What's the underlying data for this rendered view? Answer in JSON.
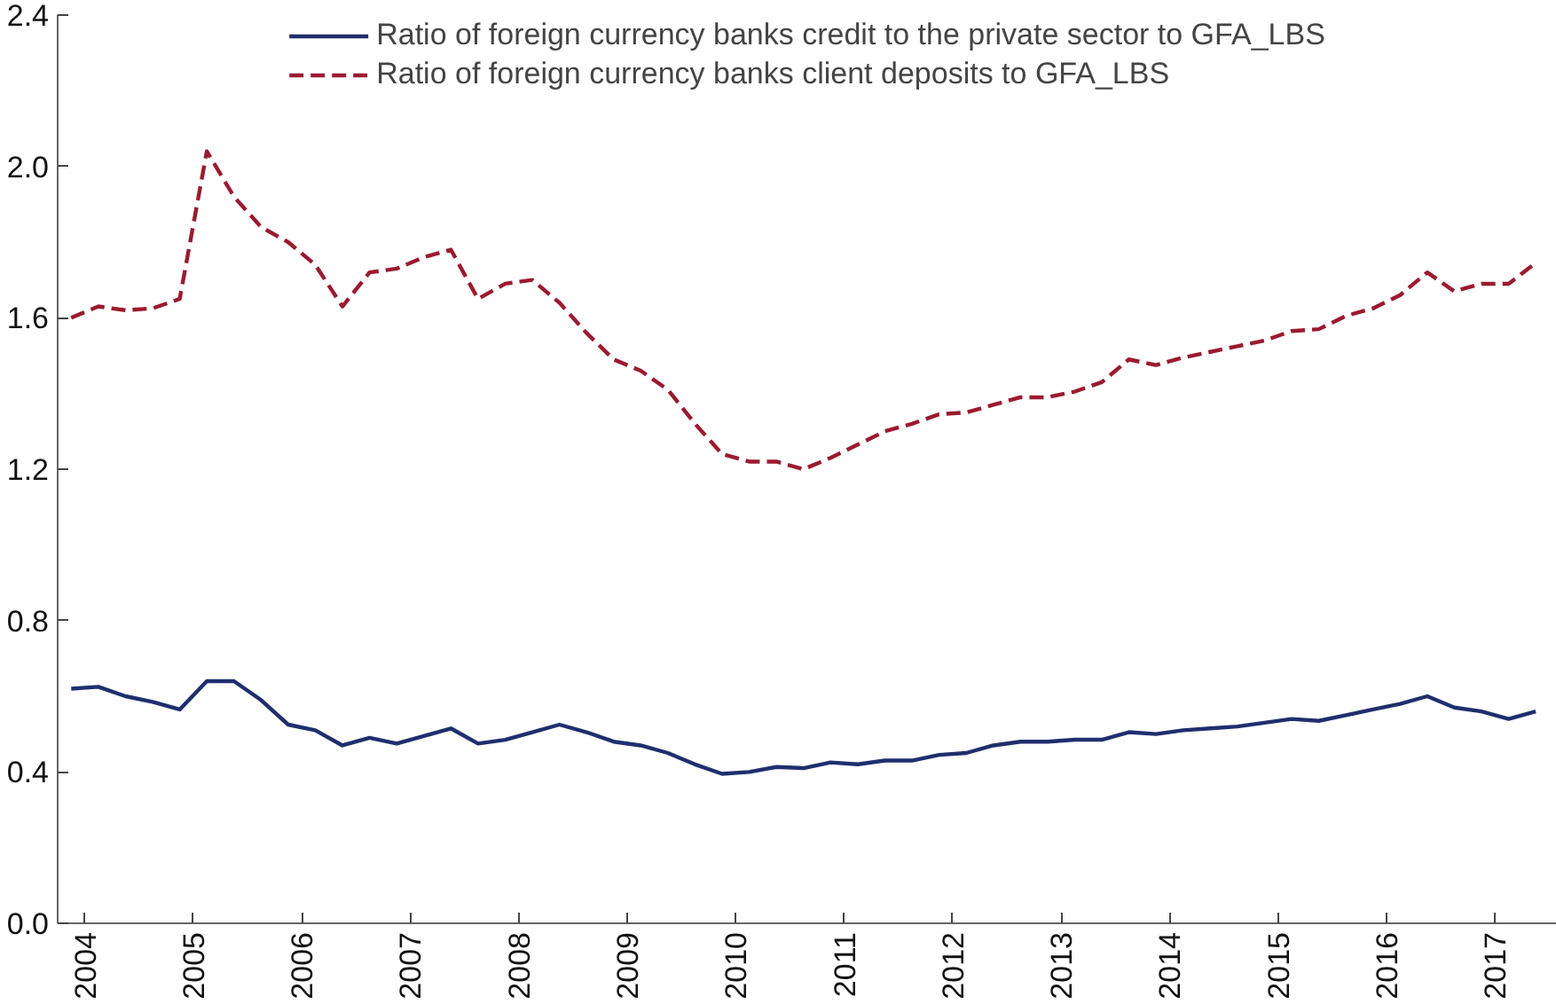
{
  "chart_data": {
    "type": "line",
    "x": [
      2003.875,
      2004.125,
      2004.375,
      2004.625,
      2004.875,
      2005.125,
      2005.375,
      2005.625,
      2005.875,
      2006.125,
      2006.375,
      2006.625,
      2006.875,
      2007.125,
      2007.375,
      2007.625,
      2007.875,
      2008.125,
      2008.375,
      2008.625,
      2008.875,
      2009.125,
      2009.375,
      2009.625,
      2009.875,
      2010.125,
      2010.375,
      2010.625,
      2010.875,
      2011.125,
      2011.375,
      2011.625,
      2011.875,
      2012.125,
      2012.375,
      2012.625,
      2012.875,
      2013.125,
      2013.375,
      2013.625,
      2013.875,
      2014.125,
      2014.375,
      2014.625,
      2014.875,
      2015.125,
      2015.375,
      2015.625,
      2015.875,
      2016.125,
      2016.375,
      2016.625,
      2016.875,
      2017.125,
      2017.375
    ],
    "series": [
      {
        "name": "Ratio of foreign currency banks credit to the private sector to GFA_LBS",
        "color": "#1f2f6e",
        "line_style": "solid",
        "values": [
          0.62,
          0.625,
          0.6,
          0.585,
          0.565,
          0.64,
          0.64,
          0.59,
          0.525,
          0.51,
          0.47,
          0.49,
          0.475,
          0.495,
          0.515,
          0.475,
          0.485,
          0.505,
          0.525,
          0.505,
          0.48,
          0.47,
          0.45,
          0.42,
          0.395,
          0.4,
          0.413,
          0.41,
          0.425,
          0.42,
          0.43,
          0.43,
          0.445,
          0.45,
          0.47,
          0.48,
          0.48,
          0.485,
          0.485,
          0.505,
          0.5,
          0.51,
          0.515,
          0.52,
          0.53,
          0.54,
          0.535,
          0.55,
          0.565,
          0.58,
          0.6,
          0.57,
          0.56,
          0.54,
          0.56
        ]
      },
      {
        "name": "Ratio of foreign currency banks client deposits to GFA_LBS",
        "color": "#9b1b30",
        "line_style": "dashed",
        "values": [
          1.6,
          1.63,
          1.62,
          1.625,
          1.65,
          2.04,
          1.92,
          1.84,
          1.8,
          1.74,
          1.63,
          1.72,
          1.73,
          1.76,
          1.78,
          1.65,
          1.69,
          1.7,
          1.64,
          1.56,
          1.49,
          1.46,
          1.41,
          1.32,
          1.24,
          1.22,
          1.22,
          1.2,
          1.23,
          1.265,
          1.3,
          1.32,
          1.345,
          1.35,
          1.37,
          1.39,
          1.39,
          1.405,
          1.43,
          1.49,
          1.475,
          1.495,
          1.51,
          1.525,
          1.54,
          1.565,
          1.57,
          1.605,
          1.625,
          1.66,
          1.72,
          1.67,
          1.69,
          1.69,
          1.745
        ]
      }
    ],
    "xlim": [
      2003.75,
      2017.57
    ],
    "xticks": [
      2004,
      2005,
      2006,
      2007,
      2008,
      2009,
      2010,
      2011,
      2012,
      2013,
      2014,
      2015,
      2016,
      2017
    ],
    "ylim": [
      0,
      2.4
    ],
    "yticks": [
      {
        "value": 0,
        "label": "0.0"
      },
      0.4,
      0.8,
      1.2,
      1.6,
      {
        "value": 2,
        "label": "2.0"
      },
      2.4
    ],
    "grid": false,
    "legend": "top"
  }
}
